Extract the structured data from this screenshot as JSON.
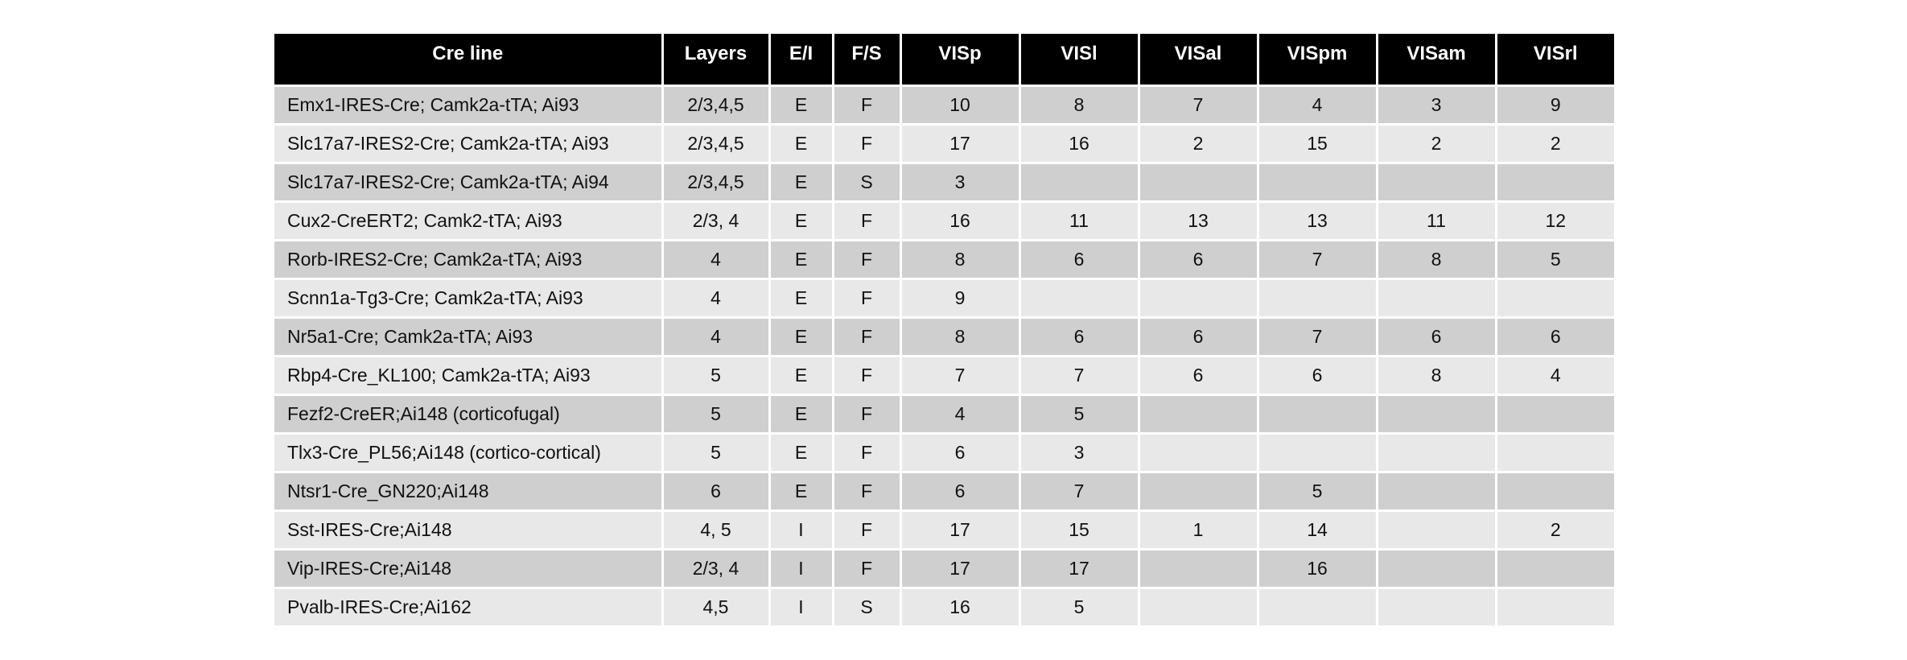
{
  "table": {
    "headers": [
      "Cre line",
      "Layers",
      "E/I",
      "F/S",
      "VISp",
      "VISl",
      "VISal",
      "VISpm",
      "VISam",
      "VISrl"
    ],
    "rows": [
      [
        "Emx1-IRES-Cre; Camk2a-tTA;  Ai93",
        "2/3,4,5",
        "E",
        "F",
        "10",
        "8",
        "7",
        "4",
        "3",
        "9"
      ],
      [
        "Slc17a7-IRES2-Cre;  Camk2a-tTA; Ai93",
        "2/3,4,5",
        "E",
        "F",
        "17",
        "16",
        "2",
        "15",
        "2",
        "2"
      ],
      [
        "Slc17a7-IRES2-Cre;  Camk2a-tTA; Ai94",
        "2/3,4,5",
        "E",
        "S",
        "3",
        "",
        "",
        "",
        "",
        ""
      ],
      [
        "Cux2-CreERT2; Camk2-tTA;  Ai93",
        "2/3,  4",
        "E",
        "F",
        "16",
        "11",
        "13",
        "13",
        "11",
        "12"
      ],
      [
        "Rorb-IRES2-Cre; Camk2a-tTA;  Ai93",
        "4",
        "E",
        "F",
        "8",
        "6",
        "6",
        "7",
        "8",
        "5"
      ],
      [
        "Scnn1a-Tg3-Cre;  Camk2a-tTA; Ai93",
        "4",
        "E",
        "F",
        "9",
        "",
        "",
        "",
        "",
        ""
      ],
      [
        "Nr5a1-Cre; Camk2a-tTA;  Ai93",
        "4",
        "E",
        "F",
        "8",
        "6",
        "6",
        "7",
        "6",
        "6"
      ],
      [
        "Rbp4-Cre_KL100;  Camk2a-tTA; Ai93",
        "5",
        "E",
        "F",
        "7",
        "7",
        "6",
        "6",
        "8",
        "4"
      ],
      [
        "Fezf2-CreER;Ai148  (corticofugal)",
        "5",
        "E",
        "F",
        "4",
        "5",
        "",
        "",
        "",
        ""
      ],
      [
        "Tlx3-Cre_PL56;Ai148  (cortico-cortical)",
        "5",
        "E",
        "F",
        "6",
        "3",
        "",
        "",
        "",
        ""
      ],
      [
        "Ntsr1-Cre_GN220;Ai148",
        "6",
        "E",
        "F",
        "6",
        "7",
        "",
        "5",
        "",
        ""
      ],
      [
        "Sst-IRES-Cre;Ai148",
        "4, 5",
        "I",
        "F",
        "17",
        "15",
        "1",
        "14",
        "",
        "2"
      ],
      [
        "Vip-IRES-Cre;Ai148",
        "2/3,  4",
        "I",
        "F",
        "17",
        "17",
        "",
        "16",
        "",
        ""
      ],
      [
        "Pvalb-IRES-Cre;Ai162",
        "4,5",
        "I",
        "S",
        "16",
        "5",
        "",
        "",
        "",
        ""
      ]
    ]
  },
  "colors": {
    "header_bg": "#000000",
    "header_text": "#ffffff",
    "row_dark": "#cfcfcf",
    "row_light": "#e8e8e8"
  }
}
